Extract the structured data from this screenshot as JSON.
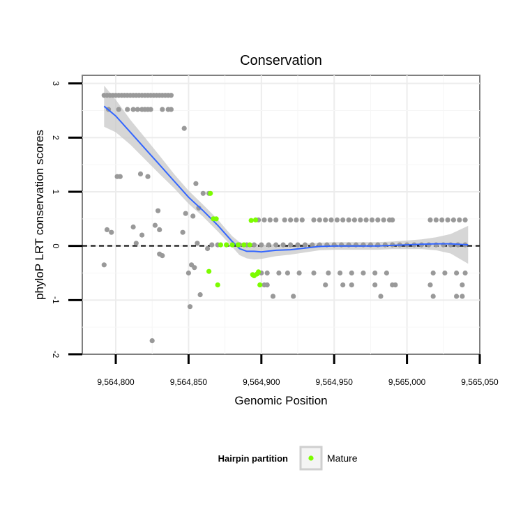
{
  "chart_data": {
    "type": "scatter",
    "title": "Conservation",
    "xlabel": "Genomic Position",
    "ylabel": "phyloP LRT conservation scores",
    "xlim": [
      9564777,
      9565050
    ],
    "ylim": [
      -2,
      3.15
    ],
    "xticks": [
      9564800,
      9564850,
      9564900,
      9564950,
      9565000,
      9565050
    ],
    "xtick_labels": [
      "9,564,800",
      "9,564,850",
      "9,564,900",
      "9,564,950",
      "9,565,000",
      "9,565,050"
    ],
    "yticks": [
      -2,
      -1,
      0,
      1,
      2,
      3
    ],
    "ytick_labels": [
      "-2",
      "-1",
      "0",
      "1",
      "2",
      "3"
    ],
    "reference_line": {
      "y": 0,
      "style": "dashed"
    },
    "grid": true,
    "legend": {
      "title": "Hairpin partition",
      "entries": [
        {
          "label": "Mature",
          "color": "#7cfc00"
        }
      ],
      "position": "bottom"
    },
    "colors": {
      "other": "#999999",
      "mature": "#7cfc00",
      "smooth": "#3366ff",
      "band": "#c8c8c8"
    },
    "series": [
      {
        "name": "Other",
        "x": [
          9564792,
          9564794,
          9564796,
          9564798,
          9564800,
          9564802,
          9564804,
          9564806,
          9564808,
          9564810,
          9564812,
          9564814,
          9564816,
          9564818,
          9564820,
          9564822,
          9564824,
          9564826,
          9564828,
          9564830,
          9564832,
          9564834,
          9564836,
          9564838,
          9564795,
          9564802,
          9564808,
          9564812,
          9564815,
          9564818,
          9564820,
          9564822,
          9564824,
          9564832,
          9564836,
          9564838,
          9564847,
          9564801,
          9564803,
          9564817,
          9564822,
          9564855,
          9564794,
          9564797,
          9564812,
          9564818,
          9564827,
          9564829,
          9564792,
          9564814,
          9564830,
          9564846,
          9564848,
          9564853,
          9564860,
          9564864,
          9564857,
          9564850,
          9564852,
          9564854,
          9564858,
          9564863,
          9564851,
          9564856,
          9564825,
          9564830,
          9564832,
          9564866,
          9564870,
          9564876,
          9564880,
          9564885,
          9564890,
          9564895,
          9564900,
          9564905,
          9564910,
          9564915,
          9564920,
          9564925,
          9564930,
          9564935,
          9564940,
          9564945,
          9564950,
          9564955,
          9564960,
          9564965,
          9564970,
          9564975,
          9564980,
          9564985,
          9564990,
          9564995,
          9565000,
          9565005,
          9565010,
          9565015,
          9565020,
          9565025,
          9565030,
          9565035,
          9565040,
          9564898,
          9564902,
          9564906,
          9564910,
          9564916,
          9564920,
          9564924,
          9564928,
          9564936,
          9564940,
          9564944,
          9564948,
          9564952,
          9564956,
          9564960,
          9564964,
          9564968,
          9564972,
          9564976,
          9564980,
          9564984,
          9564988,
          9564990,
          9565016,
          9565020,
          9565024,
          9565028,
          9565032,
          9565036,
          9565040,
          9564900,
          9564904,
          9564912,
          9564918,
          9564926,
          9564936,
          9564946,
          9564954,
          9564962,
          9564970,
          9564978,
          9564986,
          9565018,
          9565026,
          9565034,
          9565040,
          9564902,
          9564904,
          9564944,
          9564956,
          9564962,
          9564978,
          9564990,
          9564992,
          9565016,
          9565038,
          9564908,
          9564922,
          9564982,
          9565018,
          9565034,
          9565038
        ],
        "y": [
          2.78,
          2.78,
          2.78,
          2.78,
          2.78,
          2.78,
          2.78,
          2.78,
          2.78,
          2.78,
          2.78,
          2.78,
          2.78,
          2.78,
          2.78,
          2.78,
          2.78,
          2.78,
          2.78,
          2.78,
          2.78,
          2.78,
          2.78,
          2.78,
          2.52,
          2.52,
          2.52,
          2.52,
          2.52,
          2.52,
          2.52,
          2.52,
          2.52,
          2.52,
          2.52,
          2.52,
          2.17,
          1.28,
          1.28,
          1.33,
          1.28,
          1.15,
          0.3,
          0.25,
          0.35,
          0.2,
          0.38,
          0.65,
          -0.35,
          0.05,
          0.3,
          0.25,
          0.6,
          0.55,
          0.97,
          0.97,
          0.7,
          -0.5,
          -0.35,
          -0.4,
          -0.9,
          -0.05,
          -1.12,
          0.05,
          -1.75,
          -0.15,
          -0.18,
          0.02,
          0.02,
          0.02,
          0.02,
          0.02,
          0.02,
          0.02,
          0.02,
          0.02,
          0.02,
          0.02,
          0.02,
          0.02,
          0.02,
          0.02,
          0.02,
          0.02,
          0.02,
          0.02,
          0.02,
          0.02,
          0.02,
          0.02,
          0.02,
          0.02,
          0.02,
          0.02,
          0.02,
          0.02,
          0.02,
          0.02,
          0.02,
          0.02,
          0.02,
          0.02,
          0.02,
          0.48,
          0.48,
          0.48,
          0.48,
          0.48,
          0.48,
          0.48,
          0.48,
          0.48,
          0.48,
          0.48,
          0.48,
          0.48,
          0.48,
          0.48,
          0.48,
          0.48,
          0.48,
          0.48,
          0.48,
          0.48,
          0.48,
          0.48,
          0.48,
          0.48,
          0.48,
          0.48,
          0.48,
          0.48,
          0.48,
          -0.5,
          -0.5,
          -0.5,
          -0.5,
          -0.5,
          -0.5,
          -0.5,
          -0.5,
          -0.5,
          -0.5,
          -0.5,
          -0.5,
          -0.5,
          -0.5,
          -0.5,
          -0.5,
          -0.72,
          -0.72,
          -0.72,
          -0.72,
          -0.72,
          -0.72,
          -0.72,
          -0.72,
          -0.72,
          -0.72,
          -0.93,
          -0.93,
          -0.93,
          -0.93,
          -0.93,
          -0.93
        ]
      },
      {
        "name": "Mature",
        "x": [
          9564865,
          9564867,
          9564869,
          9564864,
          9564870,
          9564872,
          9564876,
          9564880,
          9564884,
          9564888,
          9564892,
          9564893,
          9564896,
          9564894,
          9564897,
          9564895,
          9564898,
          9564899
        ],
        "y": [
          0.97,
          0.5,
          0.5,
          -0.47,
          -0.72,
          0.02,
          0.02,
          0.02,
          0.02,
          0.02,
          0.02,
          0.47,
          0.48,
          -0.53,
          -0.52,
          -0.55,
          -0.48,
          -0.72
        ]
      }
    ],
    "smooth": {
      "method": "loess",
      "x": [
        9564792,
        9564800,
        9564810,
        9564820,
        9564830,
        9564840,
        9564850,
        9564860,
        9564870,
        9564876,
        9564880,
        9564885,
        9564890,
        9564895,
        9564900,
        9564910,
        9564920,
        9564930,
        9564940,
        9564950,
        9564960,
        9564970,
        9564980,
        9564990,
        9565000,
        9565010,
        9565020,
        9565030,
        9565042
      ],
      "y": [
        2.58,
        2.4,
        2.1,
        1.8,
        1.5,
        1.2,
        0.9,
        0.65,
        0.38,
        0.2,
        0.08,
        -0.05,
        -0.1,
        -0.1,
        -0.11,
        -0.08,
        -0.07,
        -0.04,
        -0.01,
        0.0,
        0.0,
        0.0,
        0.0,
        0.01,
        0.02,
        0.03,
        0.04,
        0.04,
        0.02
      ],
      "band_lower": [
        2.2,
        2.1,
        1.87,
        1.6,
        1.33,
        1.07,
        0.78,
        0.54,
        0.27,
        0.1,
        -0.02,
        -0.17,
        -0.23,
        -0.25,
        -0.24,
        -0.19,
        -0.16,
        -0.12,
        -0.08,
        -0.07,
        -0.07,
        -0.07,
        -0.07,
        -0.06,
        -0.06,
        -0.06,
        -0.08,
        -0.14,
        -0.33
      ],
      "band_upper": [
        2.96,
        2.7,
        2.33,
        2.0,
        1.67,
        1.33,
        1.02,
        0.76,
        0.49,
        0.3,
        0.18,
        0.07,
        0.03,
        0.05,
        0.02,
        0.03,
        0.02,
        0.04,
        0.06,
        0.07,
        0.07,
        0.07,
        0.07,
        0.08,
        0.1,
        0.12,
        0.16,
        0.22,
        0.37
      ]
    }
  }
}
